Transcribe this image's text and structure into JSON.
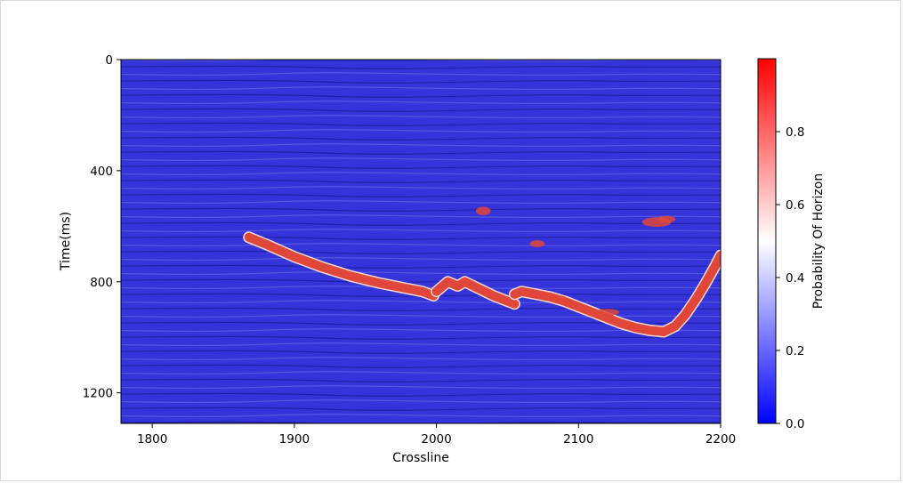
{
  "chart_data": {
    "type": "heatmap",
    "description_layer": "seismic section with horizon probability overlay",
    "xlabel": "Crossline",
    "ylabel": "Time(ms)",
    "xlim": [
      1778,
      2200
    ],
    "ylim": [
      1310,
      0
    ],
    "x_ticks": [
      1800,
      1900,
      2000,
      2100,
      2200
    ],
    "y_ticks": [
      0,
      400,
      800,
      1200
    ],
    "background_color": "#3434d8",
    "horizon_color": "#e0463a",
    "horizon_edge_color": "#f4d8cf",
    "horizon_main": {
      "x": [
        1868,
        1880,
        1900,
        1920,
        1940,
        1960,
        1975,
        1990,
        1998
      ],
      "y": [
        640,
        665,
        710,
        748,
        780,
        805,
        820,
        835,
        850
      ]
    },
    "horizon_segment_2": {
      "x": [
        2000,
        2008,
        2015,
        2020,
        2030,
        2040,
        2050,
        2055
      ],
      "y": [
        835,
        800,
        815,
        800,
        825,
        850,
        870,
        880
      ]
    },
    "horizon_main_lower": {
      "x": [
        2055,
        2060,
        2070,
        2080,
        2090,
        2100,
        2110,
        2120,
        2130,
        2140,
        2150,
        2160,
        2168,
        2175,
        2183,
        2190,
        2196,
        2200
      ],
      "y": [
        845,
        835,
        845,
        855,
        870,
        890,
        910,
        930,
        950,
        965,
        975,
        980,
        960,
        920,
        860,
        800,
        745,
        705
      ]
    },
    "blobs": [
      {
        "x": 2033,
        "y": 545,
        "w": 8,
        "h": 18
      },
      {
        "x": 2071,
        "y": 663,
        "w": 8,
        "h": 12
      },
      {
        "x": 2155,
        "y": 585,
        "w": 18,
        "h": 22
      },
      {
        "x": 2162,
        "y": 575,
        "w": 10,
        "h": 12
      },
      {
        "x": 2120,
        "y": 910,
        "w": 15,
        "h": 12
      }
    ],
    "colorbar": {
      "label": "Probability Of Horizon",
      "min": 0.0,
      "max": 1.0,
      "ticks": [
        "0.0",
        "0.2",
        "0.4",
        "0.6",
        "0.8"
      ],
      "tick_values": [
        0.0,
        0.2,
        0.4,
        0.6,
        0.8
      ],
      "colormap": "bwr",
      "colors": [
        "#0000ff",
        "#ffffff",
        "#ff0000"
      ]
    }
  }
}
